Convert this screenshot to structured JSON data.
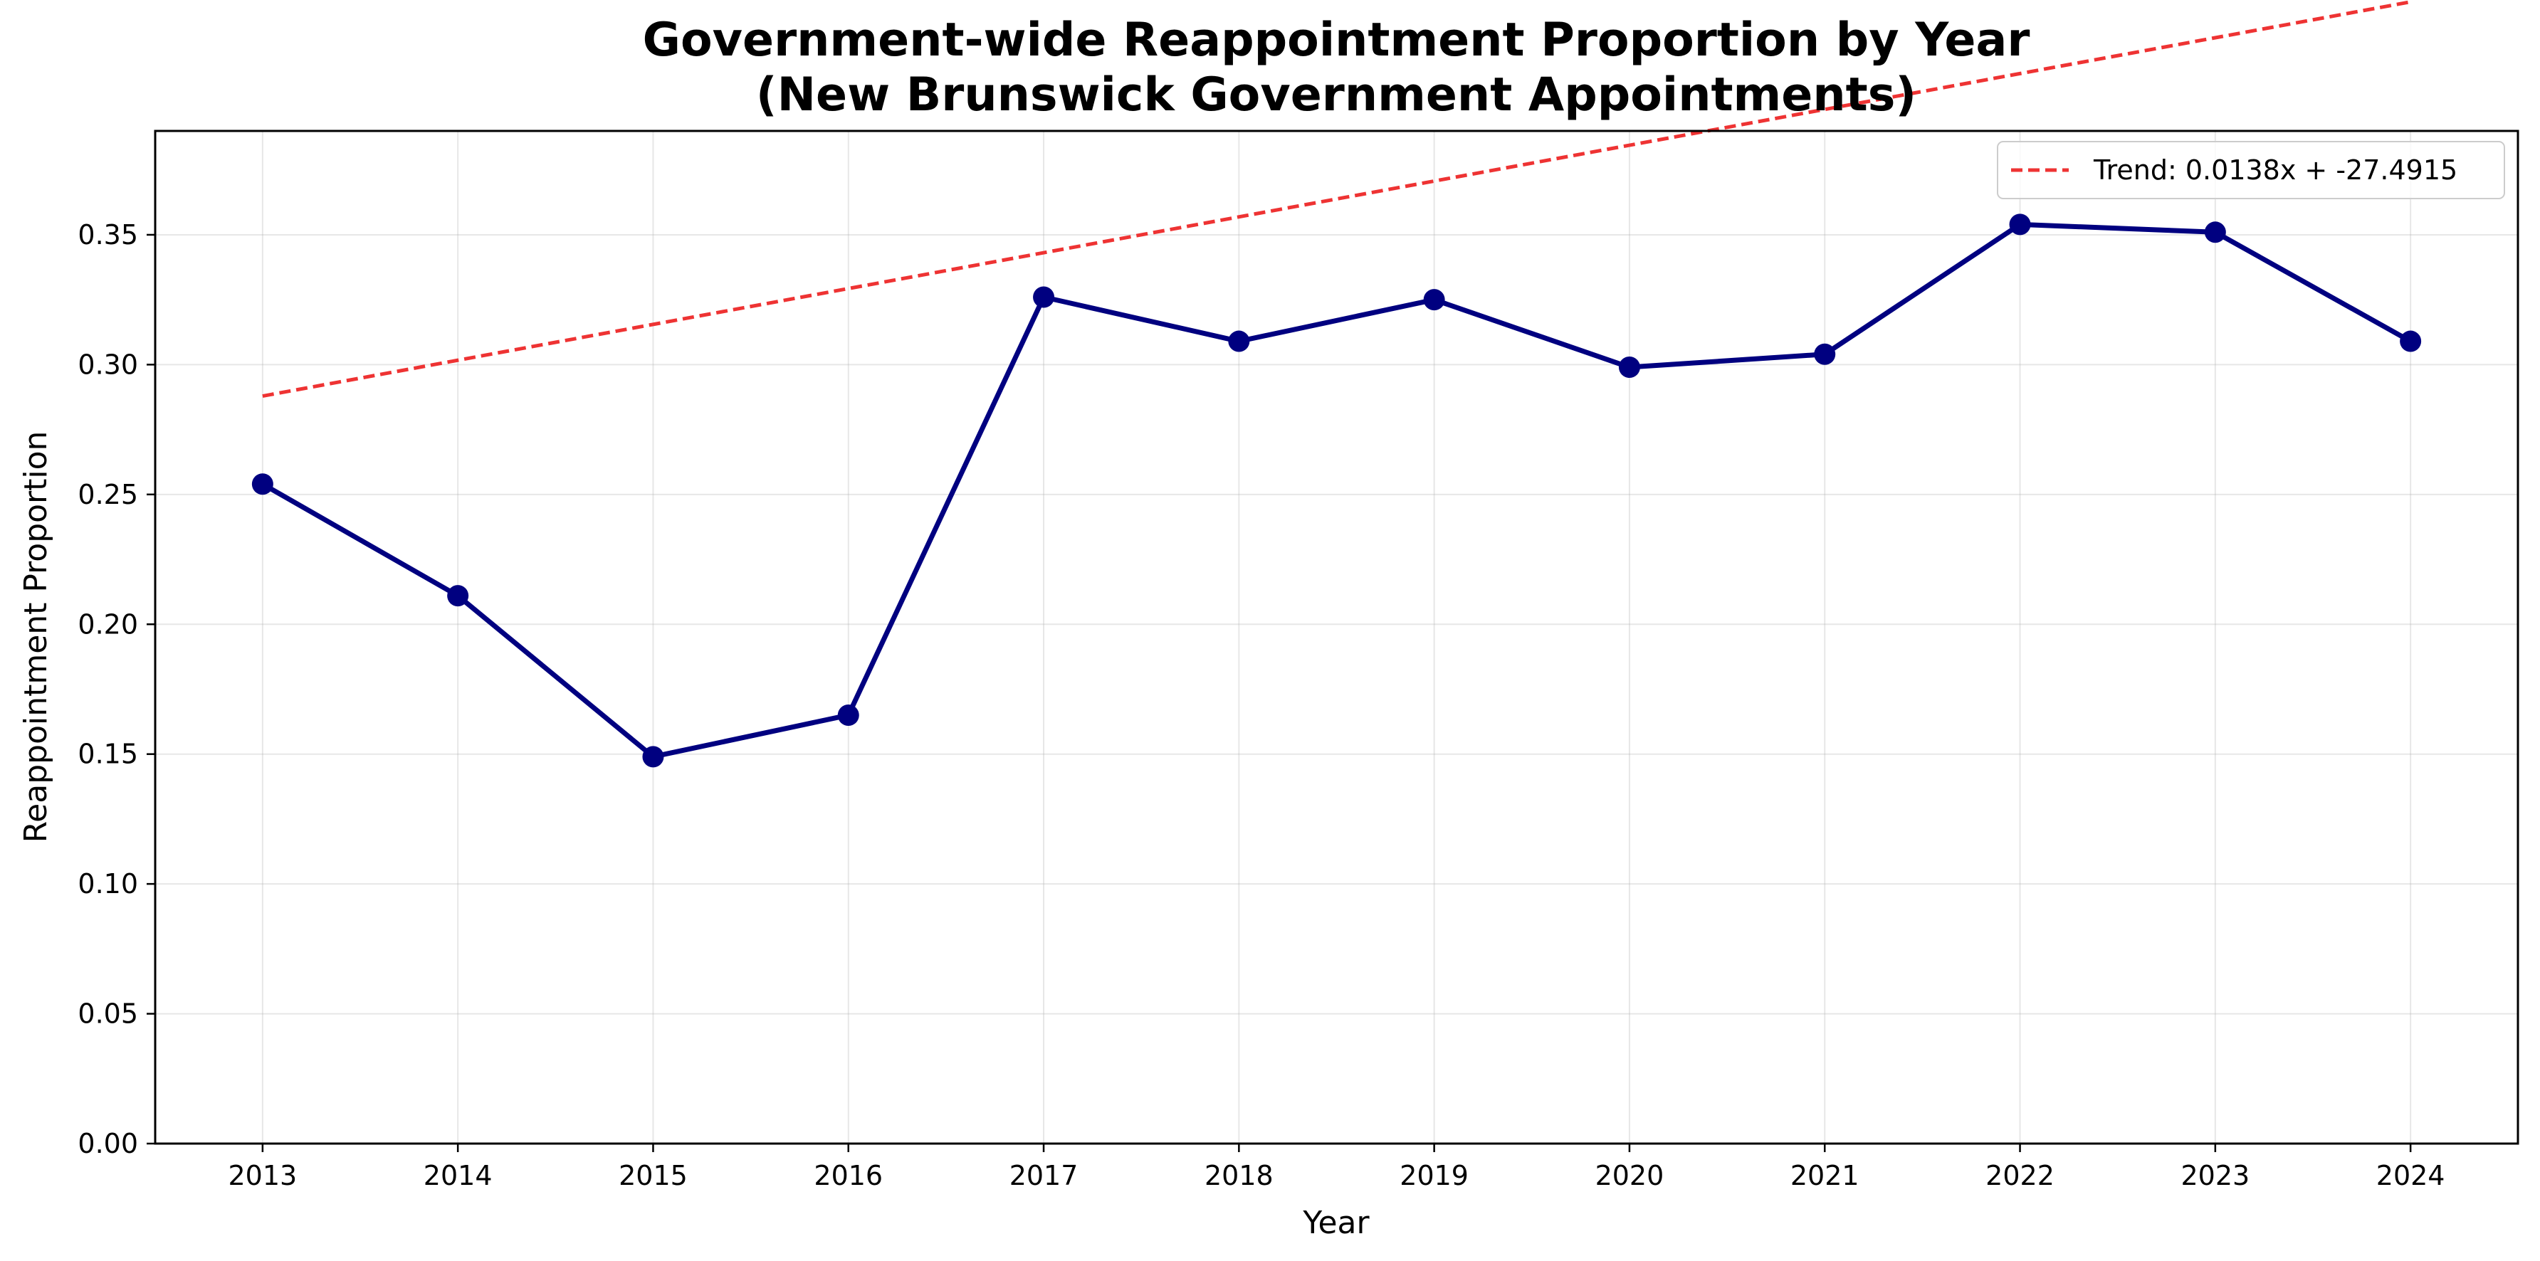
{
  "chart_data": {
    "type": "line",
    "title_lines": [
      "Government-wide Reappointment Proportion by Year",
      "(New Brunswick Government Appointments)"
    ],
    "xlabel": "Year",
    "ylabel": "Reappointment Proportion",
    "x": [
      2013,
      2014,
      2015,
      2016,
      2017,
      2018,
      2019,
      2020,
      2021,
      2022,
      2023,
      2024
    ],
    "x_tick_labels": [
      "2013",
      "2014",
      "2015",
      "2016",
      "2017",
      "2018",
      "2019",
      "2020",
      "2021",
      "2022",
      "2023",
      "2024"
    ],
    "y_tick_values": [
      0.0,
      0.05,
      0.1,
      0.15,
      0.2,
      0.25,
      0.3,
      0.35
    ],
    "y_tick_labels": [
      "0.00",
      "0.05",
      "0.10",
      "0.15",
      "0.20",
      "0.25",
      "0.30",
      "0.35"
    ],
    "xlim": [
      2012.45,
      2024.55
    ],
    "ylim": [
      0.0,
      0.39
    ],
    "grid": true,
    "legend_position": "top-right",
    "series": [
      {
        "values": [
          0.254,
          0.211,
          0.149,
          0.165,
          0.326,
          0.309,
          0.325,
          0.299,
          0.304,
          0.354,
          0.351,
          0.309
        ],
        "color": "#000080",
        "style": "solid",
        "marker": "circle"
      }
    ],
    "trend_line": {
      "legend_label": "Trend: 0.0138x + -27.4915",
      "slope": 0.0138,
      "intercept": -27.4915,
      "x_range": [
        2013,
        2024
      ],
      "color": "#ee3333",
      "style": "dashed"
    }
  }
}
